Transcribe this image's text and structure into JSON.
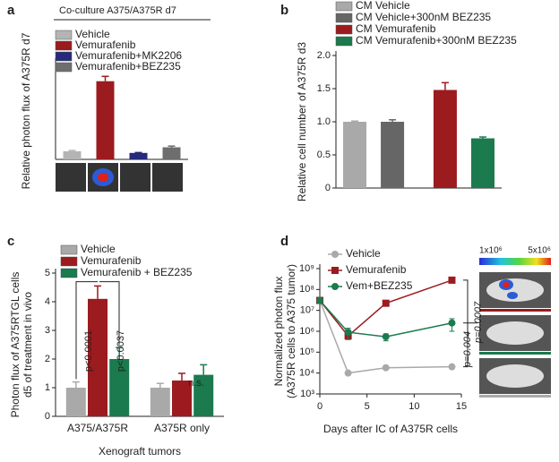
{
  "chart_data": [
    {
      "type": "bar",
      "letter": "a",
      "title": "Co-culture A375/A375R d7",
      "ylabel": [
        "Relative photon flux of A375R d7"
      ],
      "ylim": [
        0,
        12
      ],
      "series": [
        {
          "name": "Vehicle",
          "color": "#b4b4b4",
          "values": [
            1.0
          ],
          "errors": [
            0.1
          ]
        },
        {
          "name": "Vemurafenib",
          "color": "#9b1b1f",
          "values": [
            9.7
          ],
          "errors": [
            0.6
          ]
        },
        {
          "name": "Vemurafenib+MK2206",
          "color": "#262a7a",
          "values": [
            0.8
          ],
          "errors": [
            0.05
          ]
        },
        {
          "name": "Vemurafenib+BEZ235",
          "color": "#6e6e6e",
          "values": [
            1.5
          ],
          "errors": [
            0.15
          ]
        }
      ]
    },
    {
      "type": "bar",
      "letter": "b",
      "ylabel": [
        "Relative cell number of A375R d3"
      ],
      "ylim": [
        0,
        2
      ],
      "yticks": [
        0,
        0.5,
        {
          "value": 1,
          "label": "1.0"
        },
        1.5,
        {
          "value": 2,
          "label": "2.0"
        }
      ],
      "series": [
        {
          "name": "CM Vehicle",
          "color": "#a9a9a9",
          "values": [
            1.0
          ],
          "errors": [
            0.01
          ]
        },
        {
          "name": "CM Vehicle+300nM BEZ235",
          "color": "#666666",
          "values": [
            1.0
          ],
          "errors": [
            0.03
          ]
        },
        {
          "name": "CM Vemurafenib",
          "color": "#9b1b1f",
          "values": [
            1.48
          ],
          "errors": [
            0.11
          ]
        },
        {
          "name": "CM Vemurafenib+300nM BEZ235",
          "color": "#1b7a4e",
          "values": [
            0.75
          ],
          "errors": [
            0.02
          ]
        }
      ]
    },
    {
      "type": "bar",
      "letter": "c",
      "ylabel": [
        "Photon flux of A375RTGL cells",
        "d5 of treatment in vivo"
      ],
      "ylim": [
        0,
        5
      ],
      "yticks": [
        0,
        1,
        2,
        3,
        4,
        5
      ],
      "xlabel": "Xenograft tumors",
      "categories": [
        "A375/A375R",
        "A375R only"
      ],
      "series": [
        {
          "name": "Vehicle",
          "color": "#a9a9a9",
          "values": [
            1.0,
            1.0
          ],
          "errors": [
            0.2,
            0.15
          ]
        },
        {
          "name": "Vemurafenib",
          "color": "#9b1b1f",
          "values": [
            4.1,
            1.25
          ],
          "errors": [
            0.45,
            0.25
          ]
        },
        {
          "name": "Vemurafenib + BEZ235",
          "color": "#1b7a4e",
          "values": [
            2.0,
            1.45
          ],
          "errors": [
            0.4,
            0.35
          ]
        }
      ],
      "annotations": [
        "p<0.0001",
        "p<0.0037",
        "n.s."
      ]
    },
    {
      "type": "line",
      "letter": "d",
      "log_y": true,
      "ylabel": [
        "Normalized photon flux",
        "(A375R cells to A375 tumor)"
      ],
      "xlabel": "Days after IC of A375R cells",
      "xlim": [
        0,
        15
      ],
      "xticks": [
        0,
        5,
        10,
        15
      ],
      "ylim": [
        1000,
        1000000000
      ],
      "yticks": [
        {
          "value": 1000,
          "label": "10³"
        },
        {
          "value": 10000,
          "label": "10⁴"
        },
        {
          "value": 100000,
          "label": "10⁵"
        },
        {
          "value": 1000000,
          "label": "10⁶"
        },
        {
          "value": 10000000,
          "label": "10⁷"
        },
        {
          "value": 100000000,
          "label": "10⁸"
        },
        {
          "value": 1000000000,
          "label": "10⁹"
        }
      ],
      "x": [
        0,
        3,
        7,
        14
      ],
      "series": [
        {
          "name": "Vehicle",
          "color": "#a9a9a9",
          "marker": "circle",
          "values": [
            30000000,
            10000,
            18000,
            20000
          ],
          "errors": [
            0,
            2000,
            2000,
            2000
          ]
        },
        {
          "name": "Vemurafenib",
          "color": "#9b1b1f",
          "marker": "square",
          "values": [
            30000000,
            600000,
            22000000,
            280000000
          ],
          "errors": [
            0,
            150000,
            5000000,
            50000000
          ]
        },
        {
          "name": "Vem+BEZ235",
          "color": "#1b7a4e",
          "marker": "circle",
          "values": [
            30000000,
            900000,
            550000,
            2500000
          ],
          "errors": [
            0,
            500000,
            200000,
            1500000
          ]
        }
      ],
      "annotations": [
        "p=0.004",
        "p=0.0007"
      ],
      "colorbar_labels": [
        "1x10⁶",
        "5x10⁶"
      ]
    }
  ]
}
